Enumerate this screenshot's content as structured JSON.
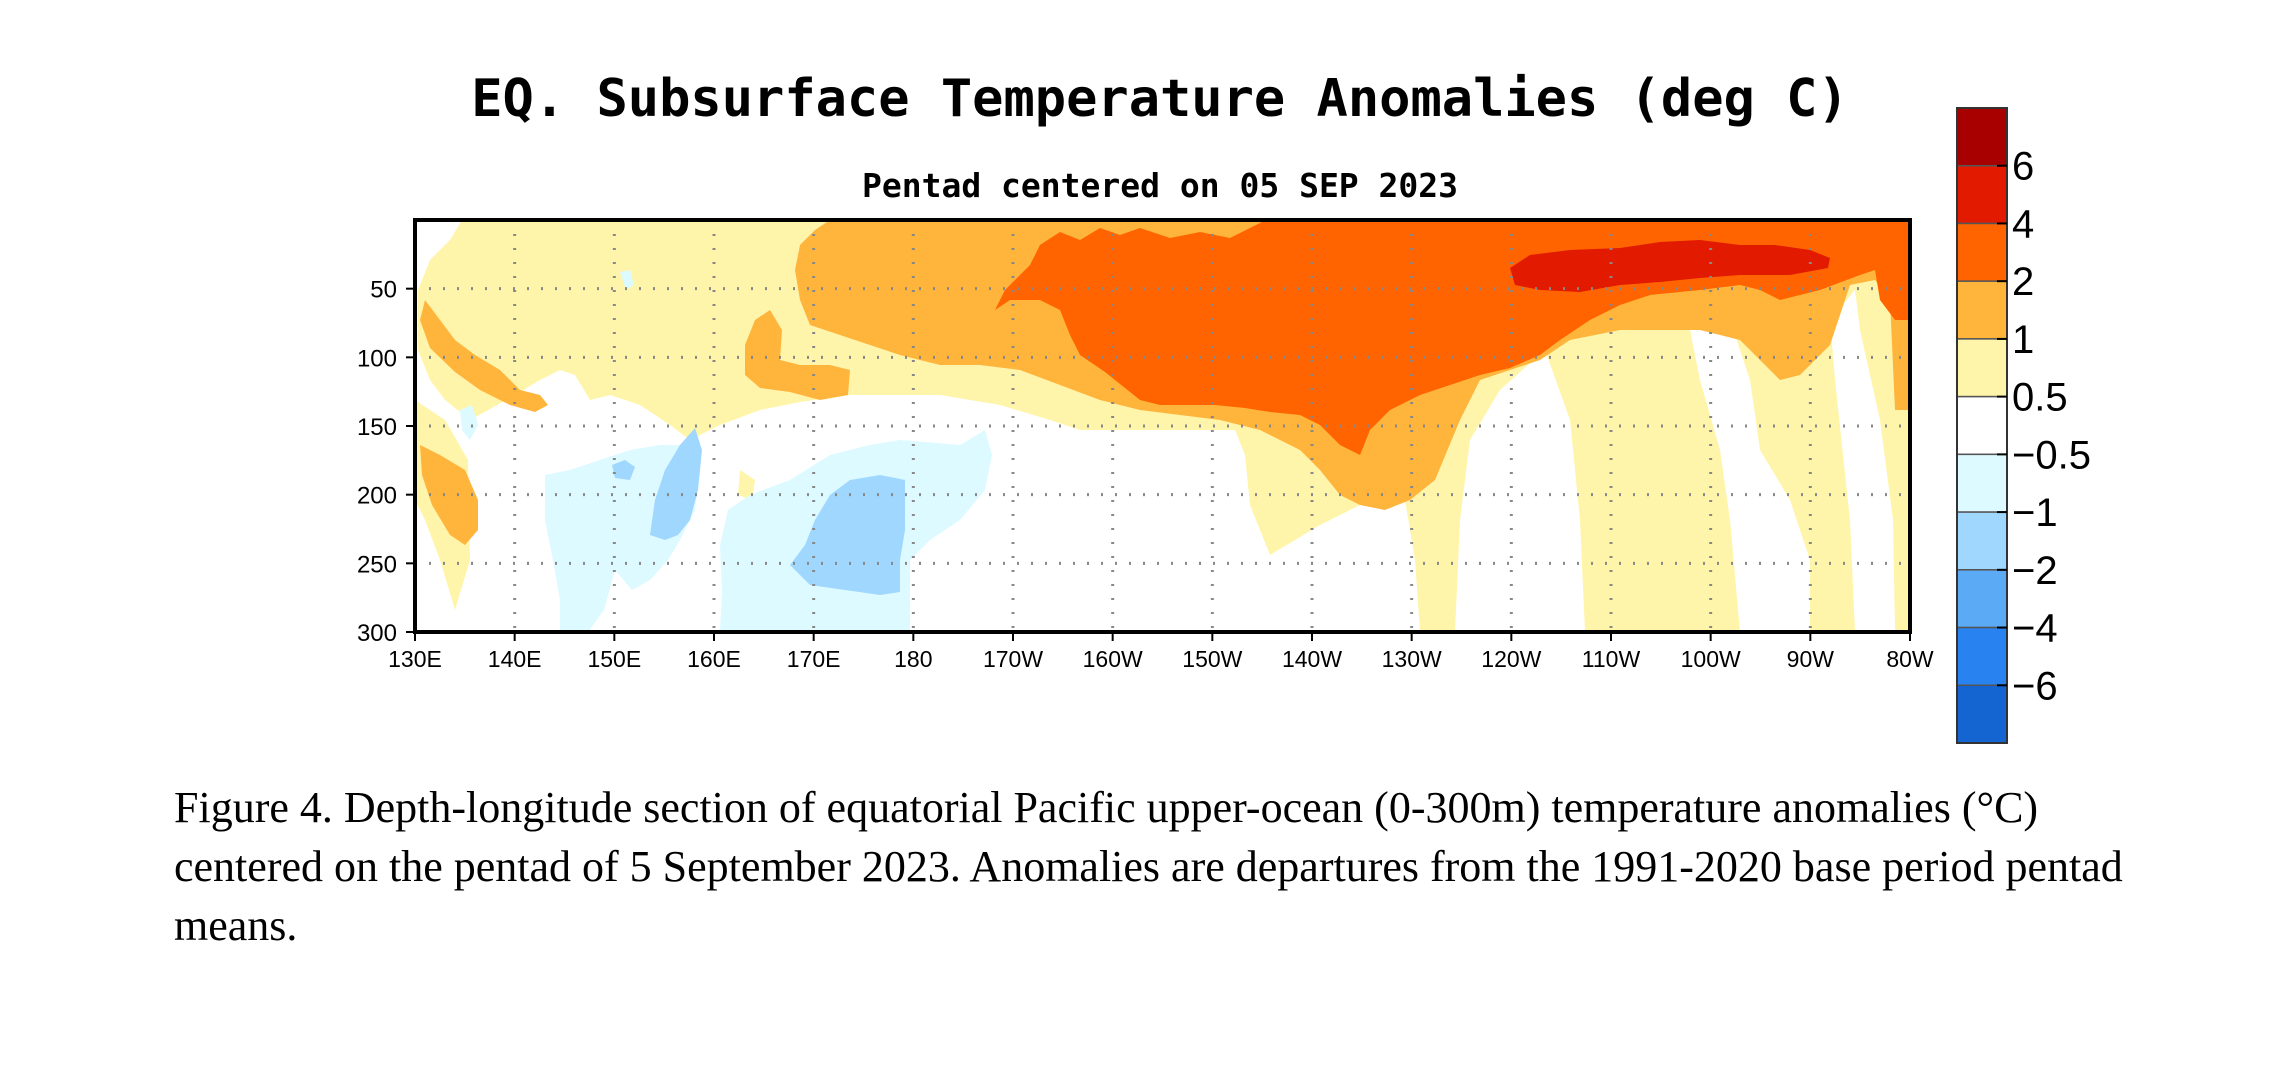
{
  "chart_data": {
    "type": "heatmap",
    "title": "EQ. Subsurface Temperature Anomalies (deg C)",
    "subtitle": "Pentad centered on 05 SEP 2023",
    "x_ticks": [
      "130E",
      "140E",
      "150E",
      "160E",
      "170E",
      "180",
      "170W",
      "160W",
      "150W",
      "140W",
      "130W",
      "120W",
      "110W",
      "100W",
      "90W",
      "80W"
    ],
    "y_ticks": [
      "50",
      "100",
      "150",
      "200",
      "250",
      "300"
    ],
    "y_values": [
      50,
      100,
      150,
      200,
      250,
      300
    ],
    "ylim": [
      300,
      0
    ],
    "xlim": [
      "130E",
      "80W"
    ],
    "grid": true,
    "colorbar": {
      "labels": [
        "6",
        "4",
        "2",
        "1",
        "0.5",
        "−0.5",
        "−1",
        "−2",
        "−4",
        "−6"
      ],
      "colors": [
        "#a80000",
        "#e21a00",
        "#ff6400",
        "#ffb43c",
        "#fff5aa",
        "#ffffff",
        "#dcfaff",
        "#a0d7ff",
        "#5aaaf5",
        "#2882f0",
        "#1464d2"
      ]
    },
    "features": [
      {
        "label": "warm_1_to_2_surface",
        "lon": [
          160,
          279
        ],
        "depth": [
          0,
          130
        ]
      },
      {
        "label": "warm_2_to_4_core",
        "lon": [
          188,
          279
        ],
        "depth": [
          0,
          175
        ]
      },
      {
        "label": "warm_4_to_6_core",
        "lon": [
          240,
          270
        ],
        "depth": [
          15,
          50
        ]
      },
      {
        "label": "cool_minus_1_to_minus_2",
        "lon": [
          168,
          182
        ],
        "depth": [
          190,
          265
        ]
      },
      {
        "label": "cool_minus_1_to_minus_2_west",
        "lon": [
          154,
          159
        ],
        "depth": [
          150,
          235
        ]
      }
    ]
  },
  "caption": "Figure 4. Depth-longitude section of equatorial Pacific upper-ocean (0-300m) temperature anomalies (°C) centered on the pentad of 5 September 2023. Anomalies are departures from the 1991-2020 base period pentad means."
}
